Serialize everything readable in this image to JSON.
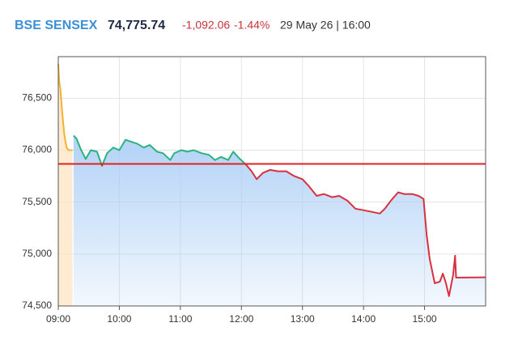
{
  "header": {
    "name": "BSE SENSEX",
    "price": "74,775.74",
    "change": "-1,092.06",
    "change_pct": "-1.44%",
    "timestamp": "29 May 26 | 16:00"
  },
  "chart_data": {
    "type": "line",
    "xlim": [
      "09:00",
      "16:00"
    ],
    "xticks": [
      "09:00",
      "10:00",
      "11:00",
      "12:00",
      "13:00",
      "14:00",
      "15:00"
    ],
    "ylim": [
      74500,
      76900
    ],
    "yticks": [
      {
        "value": 74500,
        "label": "74,500"
      },
      {
        "value": 75000,
        "label": "75,000"
      },
      {
        "value": 75500,
        "label": "75,500"
      },
      {
        "value": 76000,
        "label": "76,000"
      },
      {
        "value": 76500,
        "label": "76,500"
      }
    ],
    "grid": true,
    "ref_line": 75867.8,
    "ref_color": "#e02020",
    "series": [
      {
        "color": "#f5b02e",
        "fill": "#fde3bf",
        "x": [
          "09:00",
          "09:01",
          "09:02",
          "09:04",
          "09:06",
          "09:08",
          "09:10",
          "09:14"
        ],
        "values": [
          76830,
          76650,
          76600,
          76350,
          76150,
          76030,
          76000,
          76000
        ]
      },
      {
        "color_above": "#2bb37f",
        "color_below": "#d9303f",
        "fill": "#a9cdf5",
        "x": [
          "09:15",
          "09:18",
          "09:22",
          "09:27",
          "09:32",
          "09:38",
          "09:43",
          "09:48",
          "09:54",
          "10:00",
          "10:06",
          "10:12",
          "10:18",
          "10:24",
          "10:30",
          "10:37",
          "10:43",
          "10:50",
          "10:54",
          "11:01",
          "11:07",
          "11:13",
          "11:21",
          "11:28",
          "11:34",
          "11:40",
          "11:47",
          "11:52",
          "11:58",
          "12:04",
          "12:10",
          "12:15",
          "12:21",
          "12:28",
          "12:36",
          "12:44",
          "12:52",
          "13:00",
          "13:06",
          "13:14",
          "13:21",
          "13:29",
          "13:36",
          "13:44",
          "13:52",
          "14:00",
          "14:08",
          "14:16",
          "14:21",
          "14:27",
          "14:34",
          "14:40",
          "14:48",
          "14:54",
          "14:59",
          "15:02",
          "15:05",
          "15:10",
          "15:15",
          "15:18",
          "15:21",
          "15:24",
          "15:28",
          "15:30",
          "15:31",
          "16:00"
        ],
        "values": [
          76140,
          76110,
          76010,
          75915,
          76000,
          75985,
          75850,
          75970,
          76025,
          76000,
          76100,
          76080,
          76060,
          76025,
          76050,
          75985,
          75970,
          75905,
          75970,
          76000,
          75985,
          76000,
          75970,
          75955,
          75905,
          75935,
          75905,
          75985,
          75920,
          75867,
          75797,
          75720,
          75780,
          75810,
          75797,
          75797,
          75750,
          75720,
          75656,
          75560,
          75578,
          75547,
          75560,
          75515,
          75437,
          75422,
          75406,
          75390,
          75437,
          75515,
          75594,
          75578,
          75578,
          75560,
          75531,
          75187,
          74953,
          74719,
          74734,
          74812,
          74719,
          74594,
          74797,
          74984,
          74773,
          74775.74
        ]
      }
    ]
  }
}
